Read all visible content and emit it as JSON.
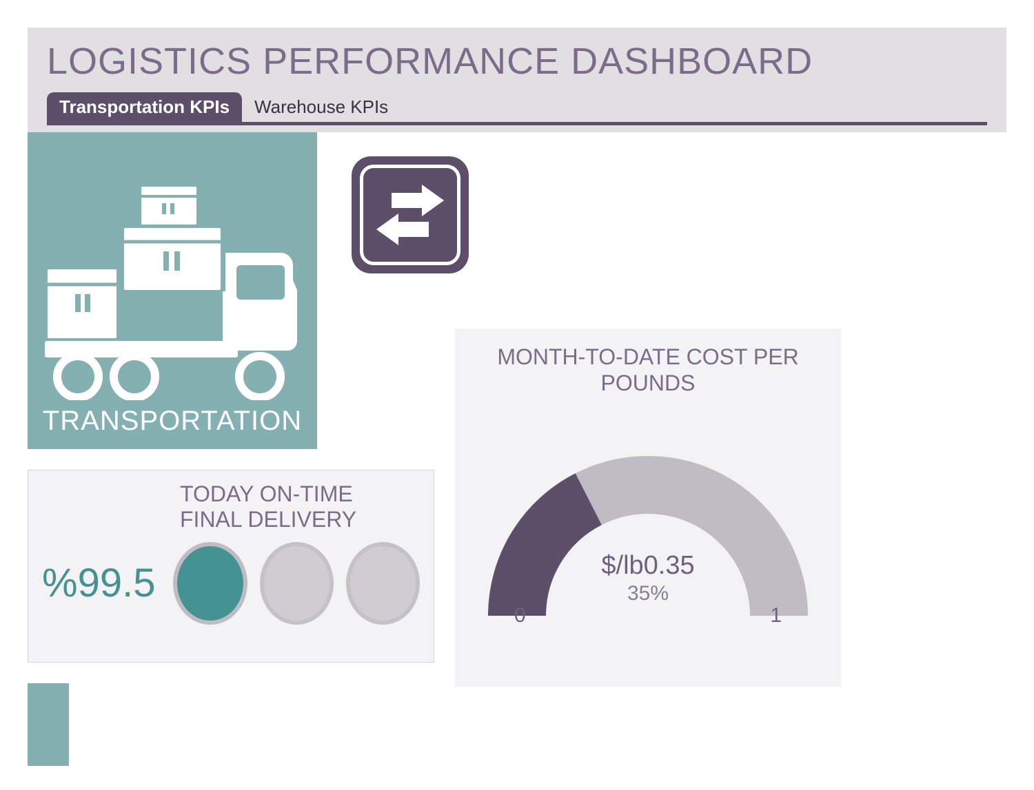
{
  "header": {
    "title": "LOGISTICS PERFORMANCE DASHBOARD",
    "title_color": "#7b6c8a",
    "background": "#e2dfe3"
  },
  "tabs": {
    "active_index": 0,
    "underline_color": "#5d4f6a",
    "items": [
      {
        "label": "Transportation KPIs"
      },
      {
        "label": "Warehouse KPIs"
      }
    ],
    "active_bg": "#5d4f6a",
    "active_fg": "#ffffff"
  },
  "panels": {
    "transportation": {
      "label": "TRANSPORTATION",
      "background": "#84b0b2",
      "icon_color": "#ffffff",
      "icon": "delivery-truck-with-boxes"
    },
    "swap_badge": {
      "icon": "swap-arrows",
      "background": "#5d4f6a",
      "border_color": "#ffffff",
      "radius": 28
    },
    "ontime": {
      "type": "indicator-dots",
      "title": "TODAY ON-TIME FINAL DELIVERY",
      "value_prefix": "%",
      "value": "99.5",
      "value_color": "#459293",
      "dots": {
        "count": 3,
        "filled_count": 1,
        "filled_color": "#459293",
        "empty_color": "#cfcdd2",
        "border_color": "#c4c1c8"
      },
      "background": "#f3f2f4",
      "title_color": "#7b6c8a"
    },
    "gauge": {
      "type": "semicircle-gauge",
      "title": "MONTH-TO-DATE COST PER POUNDS",
      "min": 0,
      "max": 1,
      "value": 0.35,
      "percent_label": "35%",
      "value_label": "$/lb0.35",
      "tick_min_label": "0",
      "tick_max_label": "1",
      "fill_color": "#5d4f6a",
      "track_color": "#bfbcc3",
      "background": "#f3f2f4",
      "title_color": "#7b6c8a",
      "text_color": "#6e617d"
    }
  },
  "colors": {
    "teal": "#84b0b2",
    "teal_dark": "#459293",
    "purple": "#5d4f6a",
    "purple_text": "#7b6c8a",
    "panel_bg": "#f3f2f4",
    "gray_fill": "#bfbcc3"
  }
}
